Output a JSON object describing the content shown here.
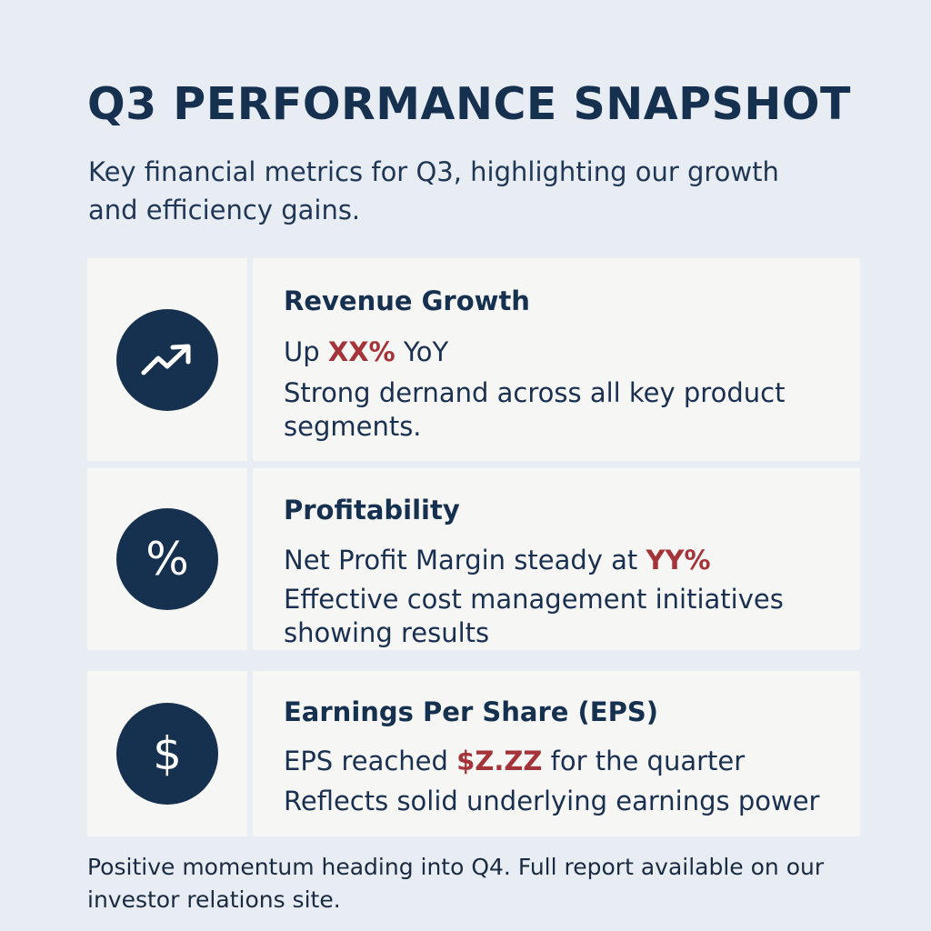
{
  "header": {
    "title": "Q3 PERFORMANCE SNAPSHOT",
    "subtitle": "Key financial metrics for Q3, highlighting our growth and efficiency gains."
  },
  "metrics": [
    {
      "icon": "trending-up-arrow-icon",
      "title": "Revenue Growth",
      "value_prefix": "Up ",
      "value_highlight": "XX%",
      "value_suffix": " YoY",
      "description": "Strong dernand across all key product segments."
    },
    {
      "icon": "percent-icon",
      "icon_glyph": "%",
      "title": "Profitability",
      "value_prefix": "Net Profit Margin steady at ",
      "value_highlight": "YY%",
      "value_suffix": "",
      "description": "Effective cost management initiatives showing results"
    },
    {
      "icon": "dollar-icon",
      "icon_glyph": "$",
      "title": "Earnings Per Share (EPS)",
      "value_prefix": "EPS reached ",
      "value_highlight": "$Z.ZZ",
      "value_suffix": " for the quarter",
      "description": "Reflects solid underlying earnings power"
    }
  ],
  "footer": {
    "text": "Positive momentum heading into Q4. Full report available on our investor relations site."
  },
  "colors": {
    "background": "#e8edf3",
    "card": "#f6f6f4",
    "navy": "#16304f",
    "accent": "#a5343a"
  }
}
